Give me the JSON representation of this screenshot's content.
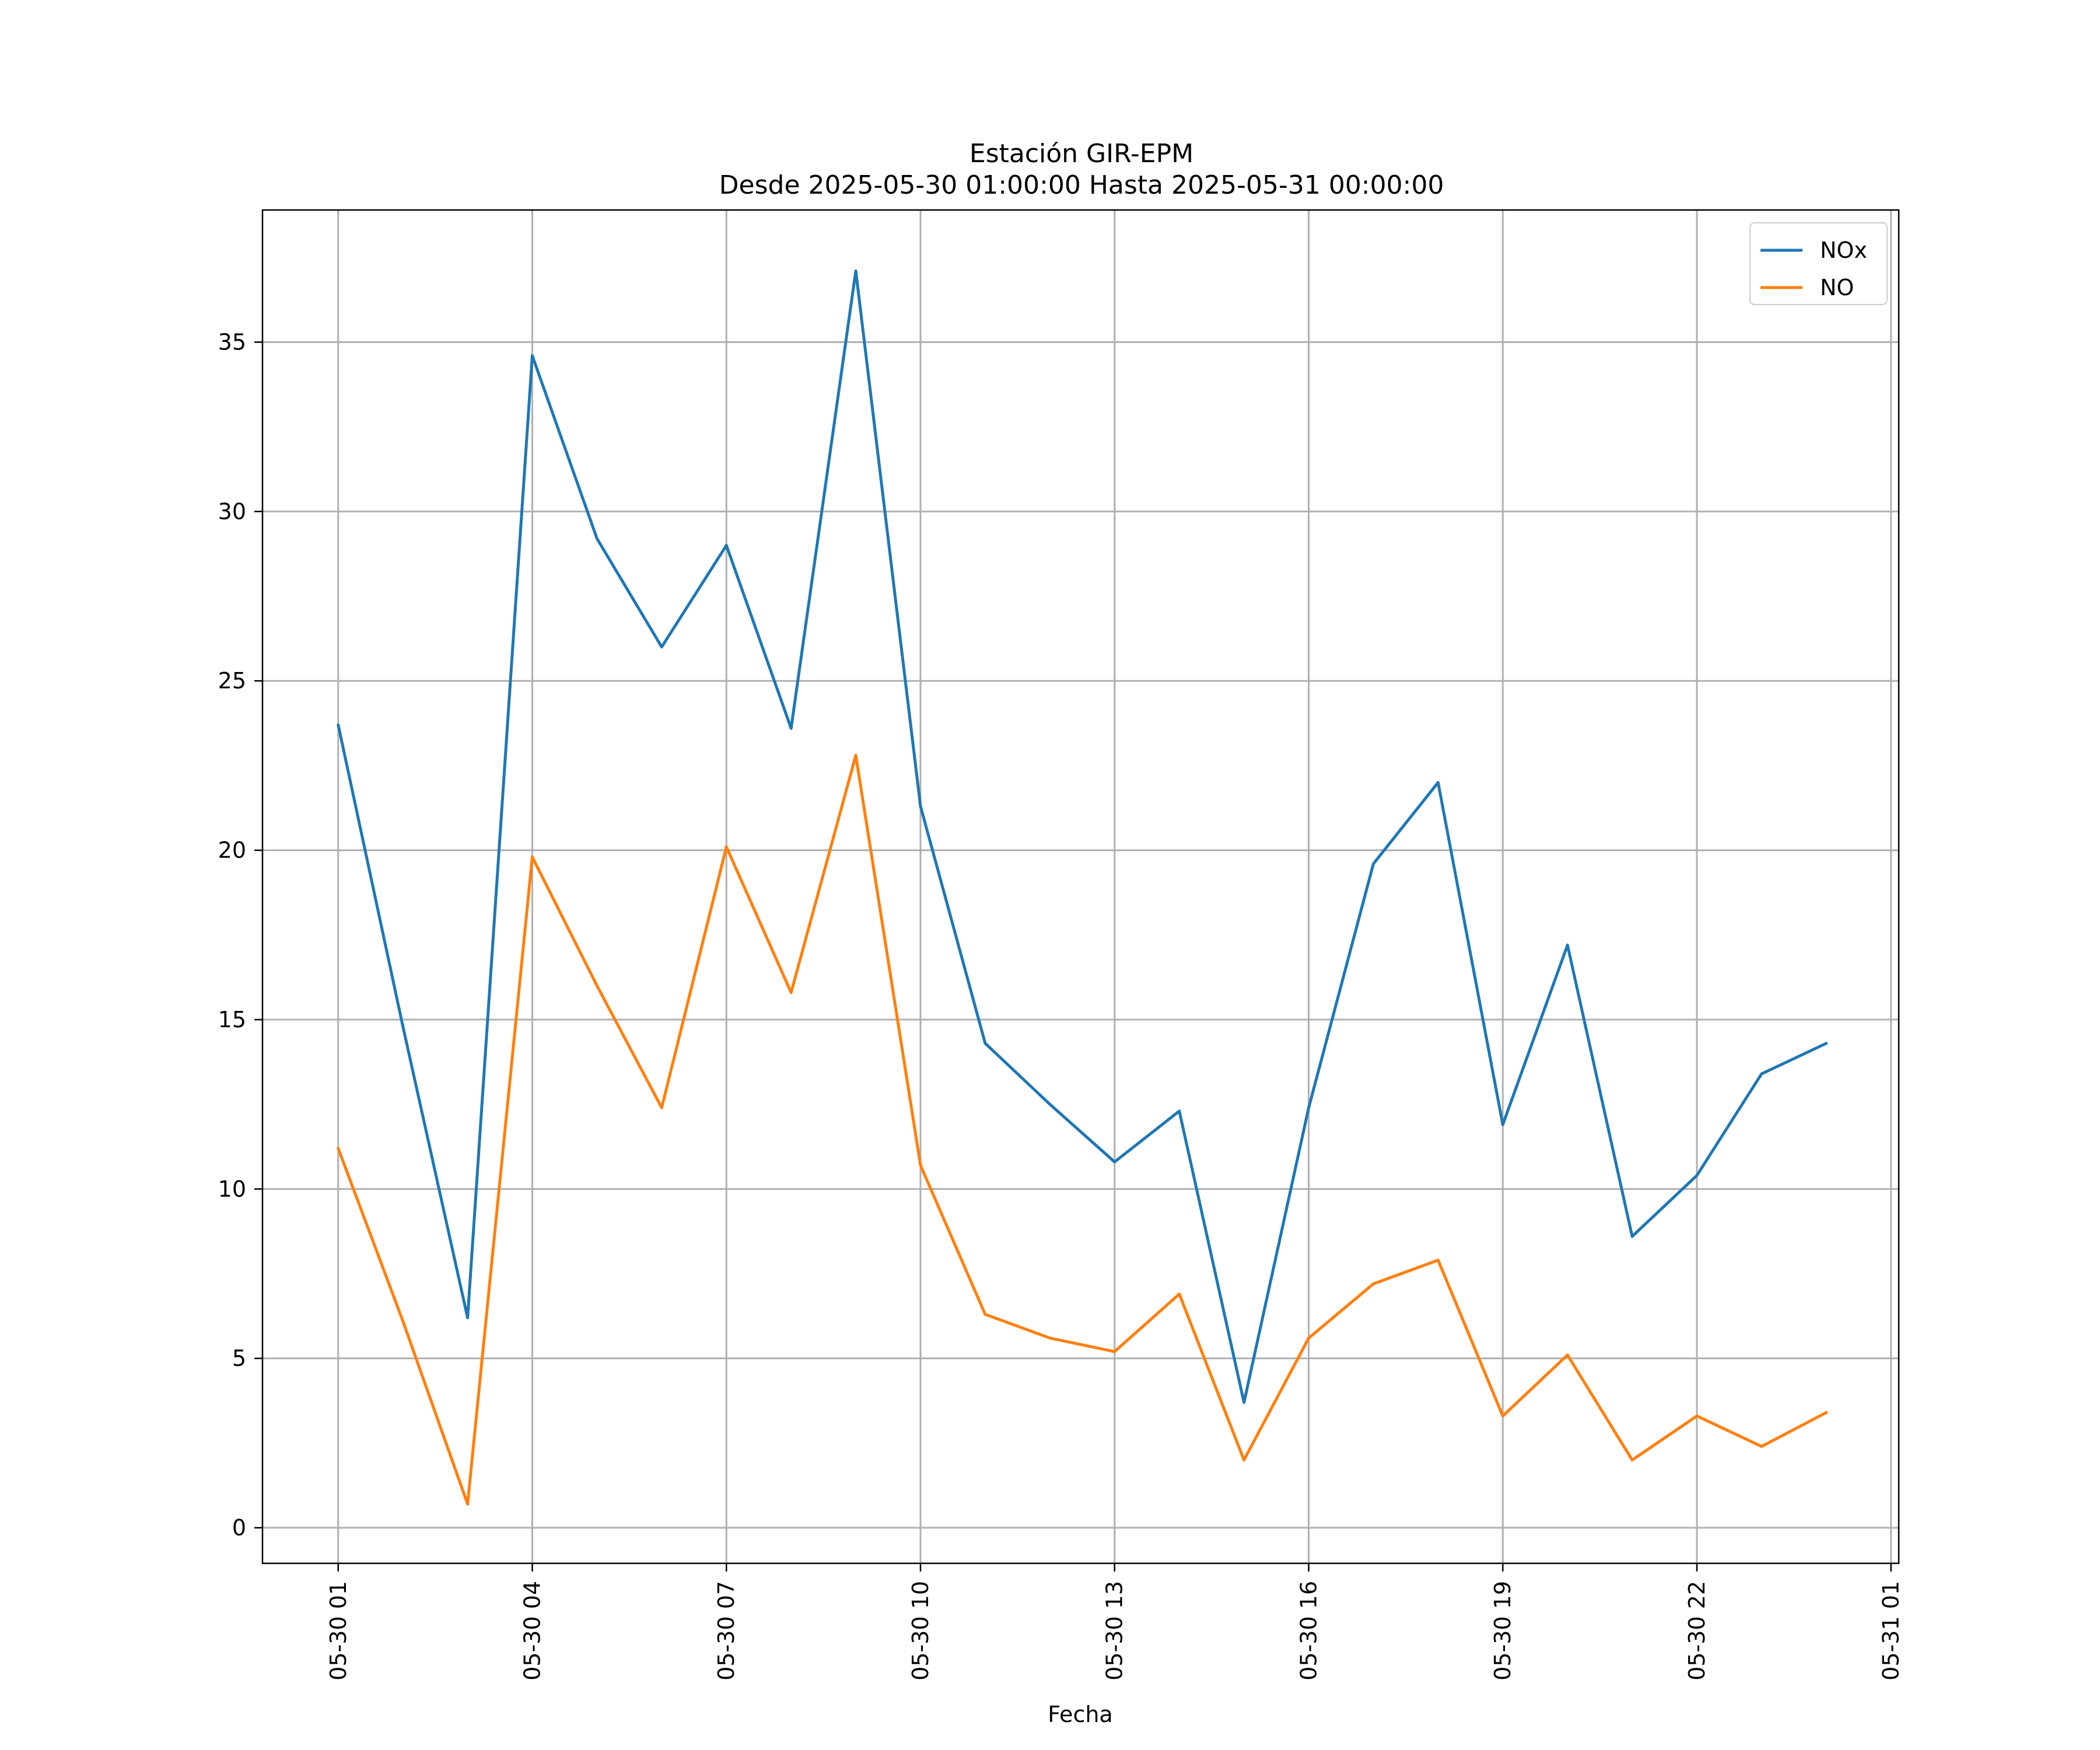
{
  "chart_data": {
    "type": "line",
    "title": "Estación GIR-EPM",
    "subtitle": "Desde 2025-05-30 01:00:00 Hasta 2025-05-31 00:00:00",
    "xlabel": "Fecha",
    "ylabel": "",
    "x_unit": "hour of 2025-05-30",
    "x": [
      "05-30 01",
      "05-30 02",
      "05-30 03",
      "05-30 04",
      "05-30 05",
      "05-30 06",
      "05-30 07",
      "05-30 08",
      "05-30 09",
      "05-30 10",
      "05-30 11",
      "05-30 12",
      "05-30 13",
      "05-30 14",
      "05-30 15",
      "05-30 16",
      "05-30 17",
      "05-30 18",
      "05-30 19",
      "05-30 20",
      "05-30 21",
      "05-30 22",
      "05-30 23",
      "05-31 00"
    ],
    "x_ticks": [
      "05-30 01",
      "05-30 04",
      "05-30 07",
      "05-30 10",
      "05-30 13",
      "05-30 16",
      "05-30 19",
      "05-30 22",
      "05-31 01"
    ],
    "y_ticks": [
      0,
      5,
      10,
      15,
      20,
      25,
      30,
      35
    ],
    "xlim": [
      "05-29 23:50",
      "05-31 01:07"
    ],
    "ylim": [
      -1.05,
      38.9
    ],
    "grid": true,
    "legend_position": "top-right",
    "series": [
      {
        "name": "NOx",
        "color": "#1f77b4",
        "values": [
          23.7,
          14.8,
          6.2,
          34.6,
          29.2,
          26.0,
          29.0,
          23.6,
          37.1,
          21.3,
          14.3,
          12.5,
          10.8,
          12.3,
          3.7,
          12.4,
          19.6,
          22.0,
          11.9,
          17.2,
          8.6,
          10.4,
          13.4,
          14.3
        ]
      },
      {
        "name": "NO",
        "color": "#ff7f0e",
        "values": [
          11.2,
          6.1,
          0.7,
          19.8,
          16.0,
          12.4,
          20.1,
          15.8,
          22.8,
          10.7,
          6.3,
          5.6,
          5.2,
          6.9,
          2.0,
          5.6,
          7.2,
          7.9,
          3.3,
          5.1,
          2.0,
          3.3,
          2.4,
          3.4
        ]
      }
    ]
  }
}
